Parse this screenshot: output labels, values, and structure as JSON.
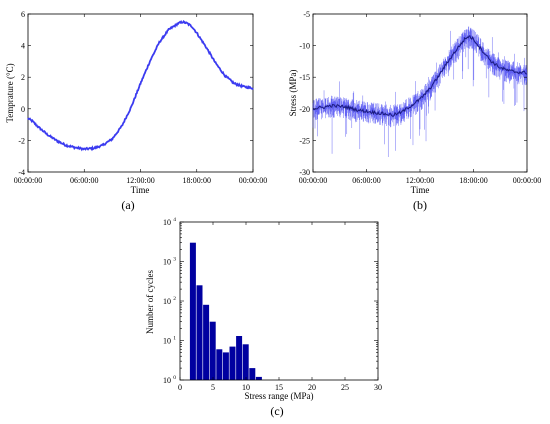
{
  "chart_data": [
    {
      "type": "line",
      "panel_label": "(a)",
      "xlabel": "Time",
      "ylabel": "Temprature (°C)",
      "xticks": [
        "00:00:00",
        "06:00:00",
        "12:00:00",
        "18:00:00",
        "00:00:00"
      ],
      "x_hours": [
        0,
        6,
        12,
        18,
        24
      ],
      "ylim": [
        -4,
        6
      ],
      "yticks": [
        -4,
        -2,
        0,
        2,
        4,
        6
      ],
      "series_color": "#3b3bf0",
      "series": [
        {
          "x": [
            0,
            0.5,
            1,
            2,
            3,
            4,
            5,
            6,
            7,
            8,
            9,
            10,
            11,
            12,
            13,
            14,
            15,
            16,
            16.5,
            17,
            17.5,
            18,
            19,
            20,
            21,
            22,
            23,
            24
          ],
          "y": [
            -0.6,
            -0.8,
            -1.1,
            -1.6,
            -2.0,
            -2.3,
            -2.45,
            -2.55,
            -2.5,
            -2.3,
            -1.9,
            -1.1,
            0.1,
            1.6,
            3.0,
            4.2,
            5.0,
            5.4,
            5.5,
            5.4,
            5.2,
            4.8,
            3.9,
            2.9,
            2.1,
            1.6,
            1.4,
            1.3
          ]
        }
      ]
    },
    {
      "type": "line",
      "panel_label": "(b)",
      "xlabel": "Time",
      "ylabel": "Stress (MPa)",
      "xticks": [
        "00:00:00",
        "06:00:00",
        "12:00:00",
        "18:00:00",
        "00:00:00"
      ],
      "x_hours": [
        0,
        6,
        12,
        18,
        24
      ],
      "ylim": [
        -30,
        -5
      ],
      "yticks": [
        -30,
        -25,
        -20,
        -15,
        -10,
        -5
      ],
      "series_color": "#3b3bf0",
      "series": [
        {
          "x": [
            0,
            1,
            2,
            3,
            4,
            5,
            6,
            7,
            8,
            9,
            10,
            11,
            12,
            13,
            14,
            15,
            16,
            17,
            17.5,
            18,
            19,
            20,
            21,
            22,
            23,
            24
          ],
          "y": [
            -20,
            -19.8,
            -19.5,
            -19.6,
            -19.8,
            -20.2,
            -20.4,
            -20.6,
            -20.8,
            -21.0,
            -20.5,
            -19.5,
            -18.5,
            -17.0,
            -15.0,
            -12.8,
            -10.8,
            -9.0,
            -8.5,
            -9.0,
            -10.8,
            -12.5,
            -13.5,
            -14.0,
            -14.2,
            -14.3
          ]
        }
      ],
      "band_color": "#8a8af5"
    },
    {
      "type": "bar",
      "panel_label": "(c)",
      "xlabel": "Stress range (MPa)",
      "ylabel": "Number of cycles",
      "xlim": [
        0,
        30
      ],
      "xticks": [
        0,
        5,
        10,
        15,
        20,
        25,
        30
      ],
      "yscale": "log",
      "ylim_exp": [
        0,
        4
      ],
      "ytick_exponents": [
        0,
        1,
        2,
        3,
        4
      ],
      "bar_color": "#0000a0",
      "bin_width": 1,
      "bin_starts": [
        1.5,
        2.5,
        3.5,
        4.5,
        5.5,
        6.5,
        7.5,
        8.5,
        9.5,
        10.5,
        11.5
      ],
      "values": [
        3000,
        250,
        80,
        30,
        6,
        5,
        7,
        13,
        8,
        2,
        1.2
      ]
    }
  ]
}
